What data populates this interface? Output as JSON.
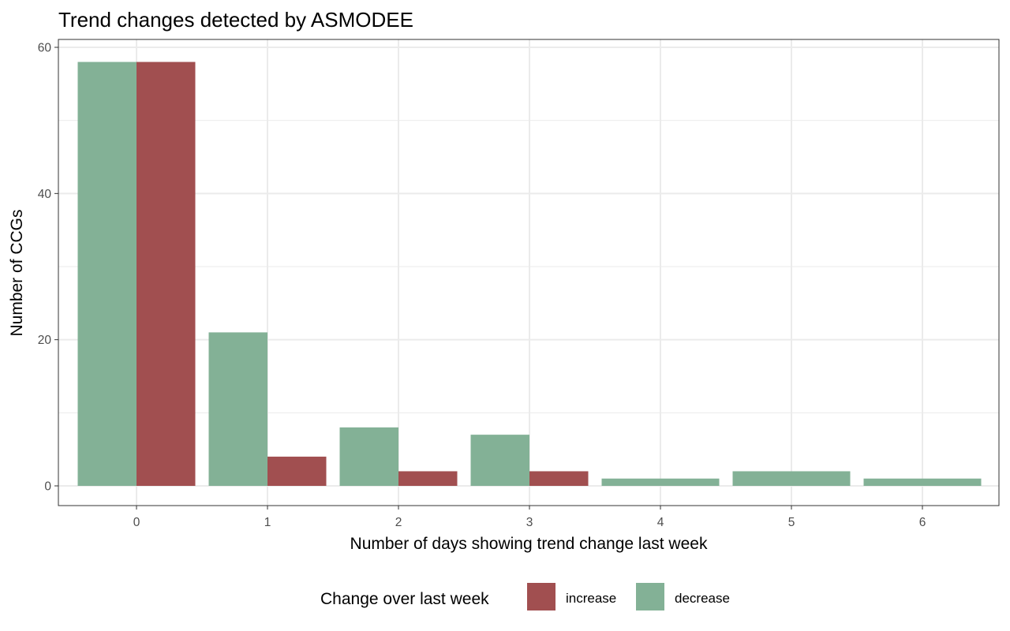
{
  "chart_data": {
    "type": "bar",
    "title": "Trend changes detected by ASMODEE",
    "xlabel": "Number of days showing trend change last week",
    "ylabel": "Number of CCGs",
    "categories": [
      "0",
      "1",
      "2",
      "3",
      "4",
      "5",
      "6"
    ],
    "series": [
      {
        "name": "decrease",
        "color": "#83b196",
        "values": [
          58,
          21,
          8,
          7,
          1,
          2,
          1
        ]
      },
      {
        "name": "increase",
        "color": "#a14f50",
        "values": [
          58,
          4,
          2,
          2,
          0,
          0,
          0
        ]
      }
    ],
    "ylim": [
      0,
      60
    ],
    "yticks": [
      "0",
      "20",
      "40",
      "60"
    ],
    "grid": true,
    "legend": {
      "title": "Change over last week",
      "position": "bottom",
      "entries": [
        {
          "label": "increase",
          "color": "#a14f50"
        },
        {
          "label": "decrease",
          "color": "#83b196"
        }
      ]
    }
  }
}
